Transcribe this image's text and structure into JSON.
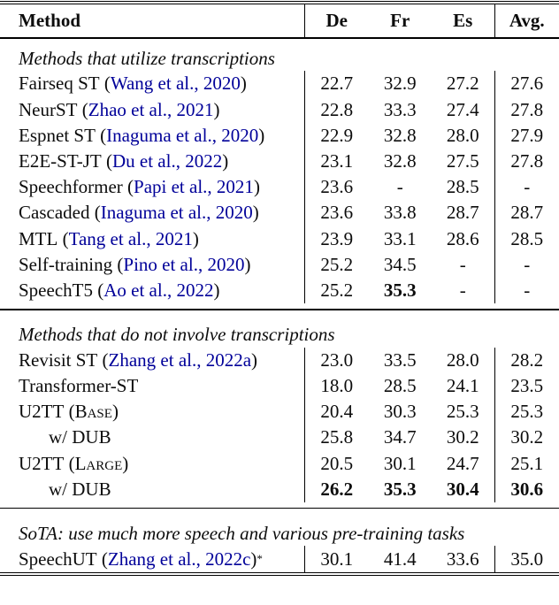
{
  "colors": {
    "citation_blue": "#000099",
    "text": "#0c0c0c",
    "rule": "#000000"
  },
  "header": {
    "method": "Method",
    "cols": [
      "De",
      "Fr",
      "Es",
      "Avg."
    ]
  },
  "sections": [
    {
      "label": "Methods that utilize transcriptions",
      "rows": [
        {
          "name": "Fairseq ST",
          "cite": "Wang et al., 2020",
          "values": [
            "22.7",
            "32.9",
            "27.2",
            "27.6"
          ]
        },
        {
          "name": "NeurST",
          "cite": "Zhao et al., 2021",
          "values": [
            "22.8",
            "33.3",
            "27.4",
            "27.8"
          ]
        },
        {
          "name": "Espnet ST",
          "cite": "Inaguma et al., 2020",
          "values": [
            "22.9",
            "32.8",
            "28.0",
            "27.9"
          ]
        },
        {
          "name": "E2E-ST-JT",
          "cite": "Du et al., 2022",
          "values": [
            "23.1",
            "32.8",
            "27.5",
            "27.8"
          ]
        },
        {
          "name": "Speechformer",
          "cite": "Papi et al., 2021",
          "values": [
            "23.6",
            "-",
            "28.5",
            "-"
          ]
        },
        {
          "name": "Cascaded",
          "cite": "Inaguma et al., 2020",
          "values": [
            "23.6",
            "33.8",
            "28.7",
            "28.7"
          ]
        },
        {
          "name": "MTL",
          "cite": "Tang et al., 2021",
          "values": [
            "23.9",
            "33.1",
            "28.6",
            "28.5"
          ]
        },
        {
          "name": "Self-training",
          "cite": "Pino et al., 2020",
          "values": [
            "25.2",
            "34.5",
            "-",
            "-"
          ]
        },
        {
          "name": "SpeechT5",
          "cite": "Ao et al., 2022",
          "values": [
            "25.2",
            "35.3",
            "-",
            "-"
          ],
          "bold": [
            1
          ]
        }
      ]
    },
    {
      "label": "Methods that do not involve transcriptions",
      "rows": [
        {
          "name": "Revisit ST",
          "cite": "Zhang et al., 2022a",
          "values": [
            "23.0",
            "33.5",
            "28.0",
            "28.2"
          ]
        },
        {
          "name": "Transformer-ST",
          "values": [
            "18.0",
            "28.5",
            "24.1",
            "23.5"
          ]
        },
        {
          "name": "U2TT",
          "variant": "Base",
          "values": [
            "20.4",
            "30.3",
            "25.3",
            "25.3"
          ]
        },
        {
          "name": "w/ DUB",
          "indent": true,
          "values": [
            "25.8",
            "34.7",
            "30.2",
            "30.2"
          ]
        },
        {
          "name": "U2TT",
          "variant": "Large",
          "values": [
            "20.5",
            "30.1",
            "24.7",
            "25.1"
          ]
        },
        {
          "name": "w/ DUB",
          "indent": true,
          "values": [
            "26.2",
            "35.3",
            "30.4",
            "30.6"
          ],
          "bold": [
            0,
            1,
            2,
            3
          ]
        }
      ]
    },
    {
      "label": "SoTA: use much more speech and various pre-training tasks",
      "rows": [
        {
          "name": "SpeechUT",
          "cite": "Zhang et al., 2022c",
          "suffix": "*",
          "values": [
            "30.1",
            "41.4",
            "33.6",
            "35.0"
          ]
        }
      ]
    }
  ]
}
